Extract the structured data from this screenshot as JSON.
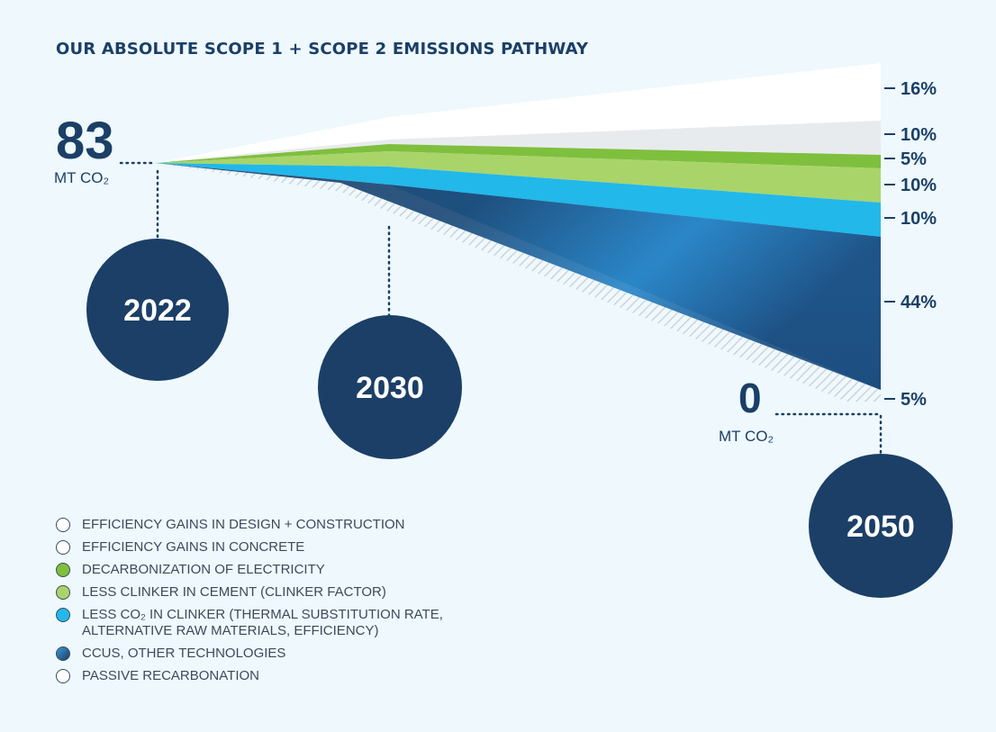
{
  "title": "OUR ABSOLUTE SCOPE 1 + SCOPE 2 EMISSIONS PATHWAY",
  "colors": {
    "dark_navy": "#1b3f66",
    "green": "#7fbf3e",
    "light_green": "#a9d46a",
    "cyan": "#22b8ea",
    "blue": "#3a97d3",
    "white": "#ffffff",
    "light_grey": "#e8ebee",
    "hatch": "#c9cdd2"
  },
  "chart_data": {
    "type": "area",
    "title": "OUR ABSOLUTE SCOPE 1 + SCOPE 2 EMISSIONS PATHWAY",
    "years": [
      "2022",
      "2030",
      "2050"
    ],
    "start_value": "83",
    "start_unit": "MT CO₂",
    "end_value": "0",
    "end_unit": "MT CO₂",
    "series": [
      {
        "name": "EFFICIENCY GAINS IN DESIGN + CONSTRUCTION",
        "share_label": "16%",
        "share": 16,
        "color": "#ffffff"
      },
      {
        "name": "EFFICIENCY GAINS IN CONCRETE",
        "share_label": "10%",
        "share": 10,
        "color": "#e8ebee"
      },
      {
        "name": "DECARBONIZATION OF ELECTRICITY",
        "share_label": "5%",
        "share": 5,
        "color": "#7fbf3e"
      },
      {
        "name": "LESS CLINKER IN CEMENT (CLINKER FACTOR)",
        "share_label": "10%",
        "share": 10,
        "color": "#a9d46a"
      },
      {
        "name": "LESS CO₂ IN CLINKER (THERMAL SUBSTITUTION RATE,\nALTERNATIVE RAW MATERIALS, EFFICIENCY)",
        "share_label": "10%",
        "share": 10,
        "color": "#22b8ea"
      },
      {
        "name": "CCUS, OTHER TECHNOLOGIES",
        "share_label": "44%",
        "share": 44,
        "color": "#3a97d3"
      },
      {
        "name": "PASSIVE RECARBONATION",
        "share_label": "5%",
        "share": 5,
        "color": "hatch"
      }
    ]
  }
}
